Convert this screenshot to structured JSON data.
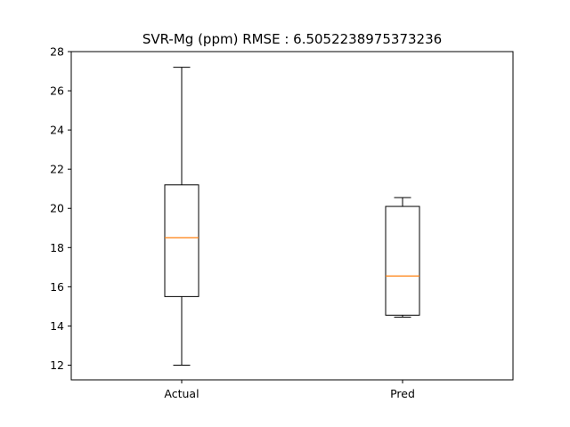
{
  "chart_data": {
    "type": "box",
    "title": "SVR-Mg (ppm) RMSE : 6.5052238975373236",
    "xlabel": "",
    "ylabel": "",
    "categories": [
      "Actual",
      "Pred"
    ],
    "boxes": [
      {
        "category": "Actual",
        "whisker_low": 12.0,
        "q1": 15.5,
        "median": 18.5,
        "q3": 21.2,
        "whisker_high": 27.2
      },
      {
        "category": "Pred",
        "whisker_low": 14.45,
        "q1": 14.55,
        "median": 16.55,
        "q3": 20.1,
        "whisker_high": 20.55
      }
    ],
    "ylim": [
      11.25,
      28.0
    ],
    "yticks": [
      12,
      14,
      16,
      18,
      20,
      22,
      24,
      26,
      28
    ],
    "grid": false,
    "colors": {
      "box": "#000000",
      "median": "#ff7f0e",
      "background": "#ffffff"
    }
  }
}
